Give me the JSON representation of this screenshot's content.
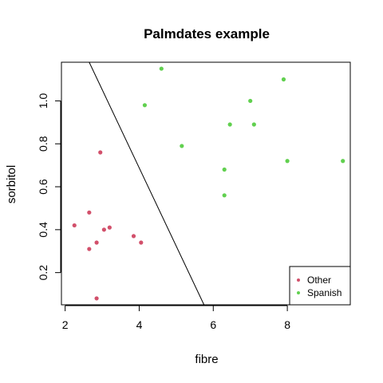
{
  "chart_data": {
    "type": "scatter",
    "title": "Palmdates example",
    "xlabel": "fibre",
    "ylabel": "sorbitol",
    "xlim": [
      1.9,
      9.7
    ],
    "ylim": [
      0.05,
      1.18
    ],
    "x_ticks": [
      2,
      4,
      6,
      8
    ],
    "x_tick_labels": [
      "2",
      "4",
      "6",
      "8"
    ],
    "y_ticks": [
      0.2,
      0.4,
      0.6,
      0.8,
      1.0
    ],
    "y_tick_labels": [
      "0.2",
      "0.4",
      "0.6",
      "0.8",
      "1.0"
    ],
    "grid": false,
    "legend_position": "bottom-right",
    "series": [
      {
        "name": "Other",
        "color": "#d2506b",
        "points": [
          [
            2.25,
            0.42
          ],
          [
            2.65,
            0.48
          ],
          [
            2.65,
            0.31
          ],
          [
            2.85,
            0.34
          ],
          [
            2.95,
            0.76
          ],
          [
            3.05,
            0.4
          ],
          [
            3.2,
            0.41
          ],
          [
            3.85,
            0.37
          ],
          [
            4.05,
            0.34
          ],
          [
            2.85,
            0.08
          ]
        ]
      },
      {
        "name": "Spanish",
        "color": "#61d04f",
        "points": [
          [
            4.6,
            1.15
          ],
          [
            4.15,
            0.98
          ],
          [
            5.15,
            0.79
          ],
          [
            6.3,
            0.68
          ],
          [
            6.3,
            0.56
          ],
          [
            6.45,
            0.89
          ],
          [
            7.0,
            1.0
          ],
          [
            7.1,
            0.89
          ],
          [
            7.9,
            1.1
          ],
          [
            8.0,
            0.72
          ],
          [
            9.5,
            0.72
          ]
        ]
      }
    ],
    "boundary_line": {
      "x": [
        2.65,
        5.75
      ],
      "y": [
        1.18,
        0.05
      ],
      "color": "#000000"
    }
  }
}
